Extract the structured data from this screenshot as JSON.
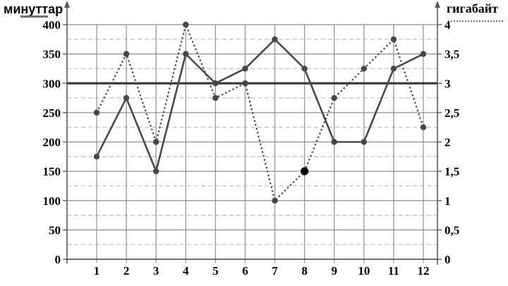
{
  "legend": {
    "left_label": "минуттар",
    "right_label": "гигабайт"
  },
  "chart_data": {
    "type": "line",
    "title": "",
    "x_categories": [
      "1",
      "2",
      "3",
      "4",
      "5",
      "6",
      "7",
      "8",
      "9",
      "10",
      "11",
      "12"
    ],
    "series": [
      {
        "name": "минуттар",
        "axis": "left",
        "style": "solid",
        "values": [
          175,
          275,
          150,
          350,
          300,
          325,
          375,
          325,
          200,
          200,
          325,
          350
        ]
      },
      {
        "name": "гигабайт",
        "axis": "right",
        "style": "dotted",
        "values": [
          2.5,
          3.5,
          2,
          4,
          2.75,
          3,
          1,
          1.5,
          2.75,
          3.25,
          3.75,
          2.25
        ]
      }
    ],
    "left_axis": {
      "label": "минуттар",
      "min": 0,
      "max": 400,
      "solid_grid_step": 50,
      "dashed_grid_step": 25,
      "tick_labels": [
        "0",
        "50",
        "100",
        "150",
        "200",
        "250",
        "300",
        "350",
        "400"
      ]
    },
    "right_axis": {
      "label": "гигабайт",
      "min": 0,
      "max": 4,
      "solid_grid_step": 0.5,
      "dashed_grid_step": 0.25,
      "tick_labels": [
        "0",
        "0,5",
        "1",
        "1,5",
        "2",
        "2,5",
        "3",
        "3,5",
        "4"
      ]
    },
    "reference_line": {
      "axis": "left",
      "value": 300
    },
    "highlight_point": {
      "series": "гигабайт",
      "x": "8",
      "value": 1.5,
      "color": "#000000"
    },
    "legend_position": "top-outside",
    "grid": "on",
    "colors": {
      "series_line": "#4a4a4a",
      "point": "#474747",
      "reference_line": "#3d3d3d",
      "solid_grid": "#909090",
      "dashed_grid": "#bababa",
      "axis": "#5a5a5a",
      "text": "#000000"
    }
  }
}
